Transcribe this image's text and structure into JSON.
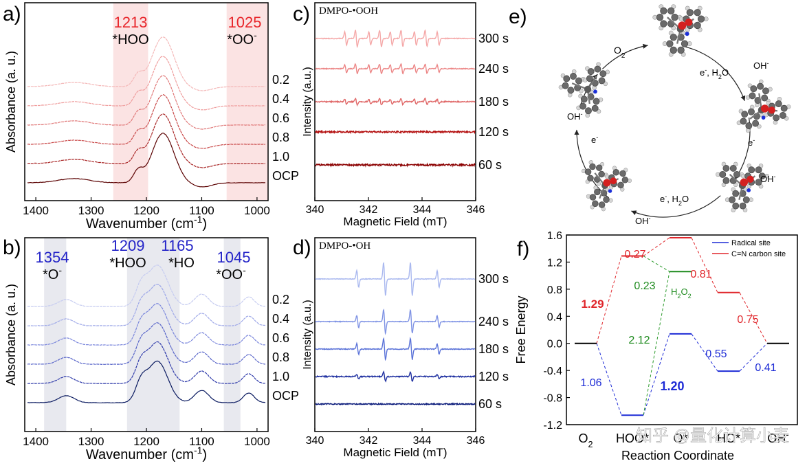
{
  "colors": {
    "red_dark": "#8b0000",
    "red_label": "#e8262b",
    "blue_label": "#2525c8",
    "blue_dark": "#0a1a7a",
    "green": "#1d8a1d",
    "band_pink": "#fbe3e3",
    "band_gray": "#e8e9ef"
  },
  "panel_a": {
    "letter": "a)",
    "xlabel": "Wavenumber (cm",
    "xlabel_sup": "-1",
    "xlabel_end": ")",
    "ylabel": "Absorbance (a. u.)",
    "xticks": [
      "1400",
      "1300",
      "1200",
      "1100",
      "1000"
    ],
    "bands": [
      {
        "pos": "1213",
        "label": "*HOO"
      },
      {
        "pos": "1025",
        "label": "*OO",
        "sup": "-"
      }
    ],
    "series": [
      "0.2",
      "0.4",
      "0.6",
      "0.8",
      "1.0",
      "OCP"
    ]
  },
  "panel_b": {
    "letter": "b)",
    "xlabel": "Wavenumber (cm",
    "xlabel_sup": "-1",
    "xlabel_end": ")",
    "ylabel": "Absorbance (a. u.)",
    "xticks": [
      "1400",
      "1300",
      "1200",
      "1100",
      "1000"
    ],
    "bands": [
      {
        "pos": "1354",
        "label": "*O",
        "sup": "-"
      },
      {
        "pos": "1209",
        "label": "*HOO"
      },
      {
        "pos": "1165",
        "label": "*HO"
      },
      {
        "pos": "1045",
        "label": "*OO",
        "sup": "-"
      }
    ],
    "series": [
      "0.2",
      "0.4",
      "0.6",
      "0.8",
      "1.0",
      "OCP"
    ]
  },
  "panel_c": {
    "letter": "c)",
    "title": "DMPO-•OOH",
    "xlabel": "Magnetic Field (mT)",
    "ylabel": "Intensity (a.u.)",
    "xticks": [
      "340",
      "342",
      "344",
      "346"
    ],
    "series": [
      "300 s",
      "240 s",
      "180 s",
      "120 s",
      "60 s"
    ]
  },
  "panel_d": {
    "letter": "d)",
    "title": "DMPO-•OH",
    "xlabel": "Magnetic Field (mT)",
    "ylabel": "Intensity (a.u.)",
    "xticks": [
      "340",
      "342",
      "344",
      "346"
    ],
    "series": [
      "300 s",
      "240 s",
      "180 s",
      "120 s",
      "60 s"
    ]
  },
  "panel_e": {
    "letter": "e)",
    "labels": {
      "o2": "O",
      "o2_sub": "2",
      "e_h2o_1": "e",
      "e_h2o_1b": ", H",
      "e_h2o_1c": "O",
      "oh": "OH",
      "e1": "e",
      "e_h2o_2": "e",
      "e_h2o_2b": ", H",
      "e_h2o_2c": "O",
      "e2": "e"
    },
    "sub2": "2",
    "minus": "-"
  },
  "panel_f": {
    "letter": "f)",
    "ylabel": "Free Energy",
    "xlabel": "Reaction Coordinate",
    "yticks": [
      "1.6",
      "1.2",
      "0.8",
      "0.4",
      "0.0",
      "-0.4",
      "-0.8",
      "-1.2"
    ],
    "legend": [
      "Radical site",
      "C=N carbon site"
    ],
    "xcats": [
      "O",
      "HOO*",
      "O*",
      "HO*",
      "OH"
    ],
    "annotations": {
      "a127": "0.27",
      "a081": "0.81",
      "a129": "1.29",
      "a023": "0.23",
      "h2o2": "H",
      "h2o2_sub1": "2",
      "h2o2_o": "O",
      "h2o2_sub2": "2",
      "a075": "0.75",
      "a212": "2.12",
      "a055": "0.55",
      "a106": "1.06",
      "a120": "1.20",
      "a041": "0.41"
    }
  },
  "watermark": "知乎 @量化计算小麦",
  "chart_data": [
    {
      "type": "line",
      "panel": "a",
      "xlabel": "Wavenumber (cm-1)",
      "ylabel": "Absorbance (a. u.)",
      "xlim": [
        1420,
        980
      ],
      "x_reversed": true,
      "highlighted_bands_cm-1": [
        1213,
        1025
      ],
      "series": [
        {
          "name": "0.2",
          "peak_cm-1": 1170
        },
        {
          "name": "0.4",
          "peak_cm-1": 1170
        },
        {
          "name": "0.6",
          "peak_cm-1": 1170
        },
        {
          "name": "0.8",
          "peak_cm-1": 1170
        },
        {
          "name": "1.0",
          "peak_cm-1": 1170
        },
        {
          "name": "OCP",
          "peak_cm-1": 1170
        }
      ]
    },
    {
      "type": "line",
      "panel": "b",
      "xlabel": "Wavenumber (cm-1)",
      "ylabel": "Absorbance (a. u.)",
      "xlim": [
        1420,
        980
      ],
      "x_reversed": true,
      "highlighted_bands_cm-1": [
        1354,
        1209,
        1165,
        1045
      ],
      "series": [
        {
          "name": "0.2"
        },
        {
          "name": "0.4"
        },
        {
          "name": "0.6"
        },
        {
          "name": "0.8"
        },
        {
          "name": "1.0"
        },
        {
          "name": "OCP"
        }
      ]
    },
    {
      "type": "line",
      "panel": "c",
      "title": "DMPO-•OOH",
      "xlabel": "Magnetic Field (mT)",
      "ylabel": "Intensity (a.u.)",
      "xlim": [
        340,
        346
      ],
      "series": [
        {
          "name": "300 s"
        },
        {
          "name": "240 s"
        },
        {
          "name": "180 s"
        },
        {
          "name": "120 s"
        },
        {
          "name": "60 s"
        }
      ]
    },
    {
      "type": "line",
      "panel": "d",
      "title": "DMPO-•OH",
      "xlabel": "Magnetic Field (mT)",
      "ylabel": "Intensity (a.u.)",
      "xlim": [
        340,
        346
      ],
      "peaks_mT": [
        341.6,
        342.6,
        343.6,
        344.6
      ],
      "series": [
        {
          "name": "300 s"
        },
        {
          "name": "240 s"
        },
        {
          "name": "180 s"
        },
        {
          "name": "120 s"
        },
        {
          "name": "60 s"
        }
      ]
    },
    {
      "type": "line",
      "panel": "f",
      "xlabel": "Reaction Coordinate",
      "ylabel": "Free Energy",
      "ylim": [
        -1.2,
        1.6
      ],
      "categories": [
        "O2",
        "HOO*",
        "O*",
        "HO*",
        "OH-"
      ],
      "series": [
        {
          "name": "Radical site",
          "values": [
            0.0,
            -1.06,
            0.14,
            -0.41,
            0.0
          ]
        },
        {
          "name": "C=N carbon site",
          "values": [
            0.0,
            1.29,
            1.56,
            0.75,
            0.0
          ]
        },
        {
          "name": "H2O2",
          "values": [
            null,
            -1.06,
            1.06,
            null,
            null
          ]
        }
      ]
    }
  ]
}
